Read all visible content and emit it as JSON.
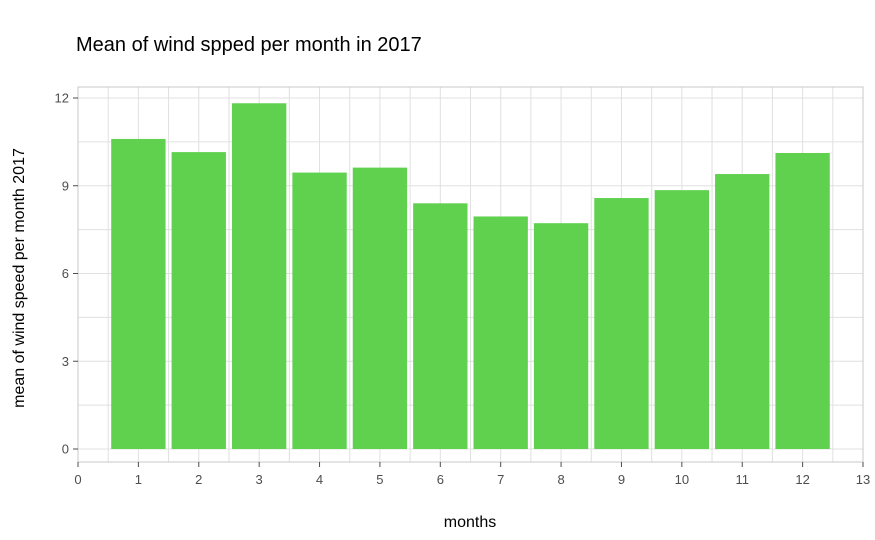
{
  "chart_data": {
    "type": "bar",
    "title": "Mean of wind spped per month in 2017",
    "xlabel": "months",
    "ylabel": "mean of wind speed per month 2017",
    "x": [
      1,
      2,
      3,
      4,
      5,
      6,
      7,
      8,
      9,
      10,
      11,
      12
    ],
    "values": [
      10.6,
      10.15,
      11.82,
      9.45,
      9.62,
      8.4,
      7.95,
      7.72,
      8.58,
      8.85,
      9.4,
      10.12
    ],
    "xlim": [
      0,
      13
    ],
    "ylim": [
      0,
      12
    ],
    "xticks": [
      0,
      1,
      2,
      3,
      4,
      5,
      6,
      7,
      8,
      9,
      10,
      11,
      12,
      13
    ],
    "yticks": [
      0,
      3,
      6,
      9,
      12
    ],
    "grid": true,
    "bar_color": "#5fd14f",
    "grid_color": "#e0e0e0",
    "panel_border_color": "#c8c8c8",
    "tick_color": "#4d4d4d"
  }
}
